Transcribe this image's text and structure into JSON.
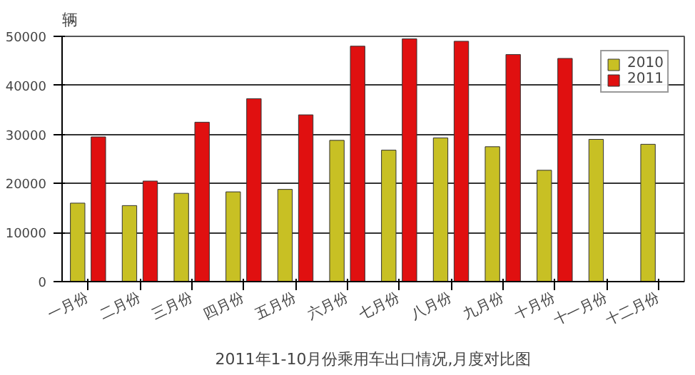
{
  "chart_data": {
    "type": "bar",
    "ylabel": "辆",
    "annotations": [
      "2011年1-10月份乘用车出口情况,月度对比图"
    ],
    "categories": [
      "一月份",
      "二月份",
      "三月份",
      "四月份",
      "五月份",
      "六月份",
      "七月份",
      "八月份",
      "九月份",
      "十月份",
      "十一月份",
      "十二月份"
    ],
    "series": [
      {
        "name": "2010",
        "color": "#c8c024",
        "values": [
          16000,
          15500,
          18000,
          18300,
          18800,
          28800,
          26800,
          29300,
          27500,
          22700,
          29000,
          28000
        ]
      },
      {
        "name": "2011",
        "color": "#e01010",
        "values": [
          29500,
          20500,
          32500,
          37300,
          34000,
          48000,
          49500,
          49000,
          46300,
          45500,
          null,
          null
        ]
      }
    ],
    "ylim": [
      0,
      50000
    ],
    "yticks": [
      0,
      10000,
      20000,
      30000,
      40000,
      50000
    ],
    "grid": "y",
    "legend": "top right"
  }
}
